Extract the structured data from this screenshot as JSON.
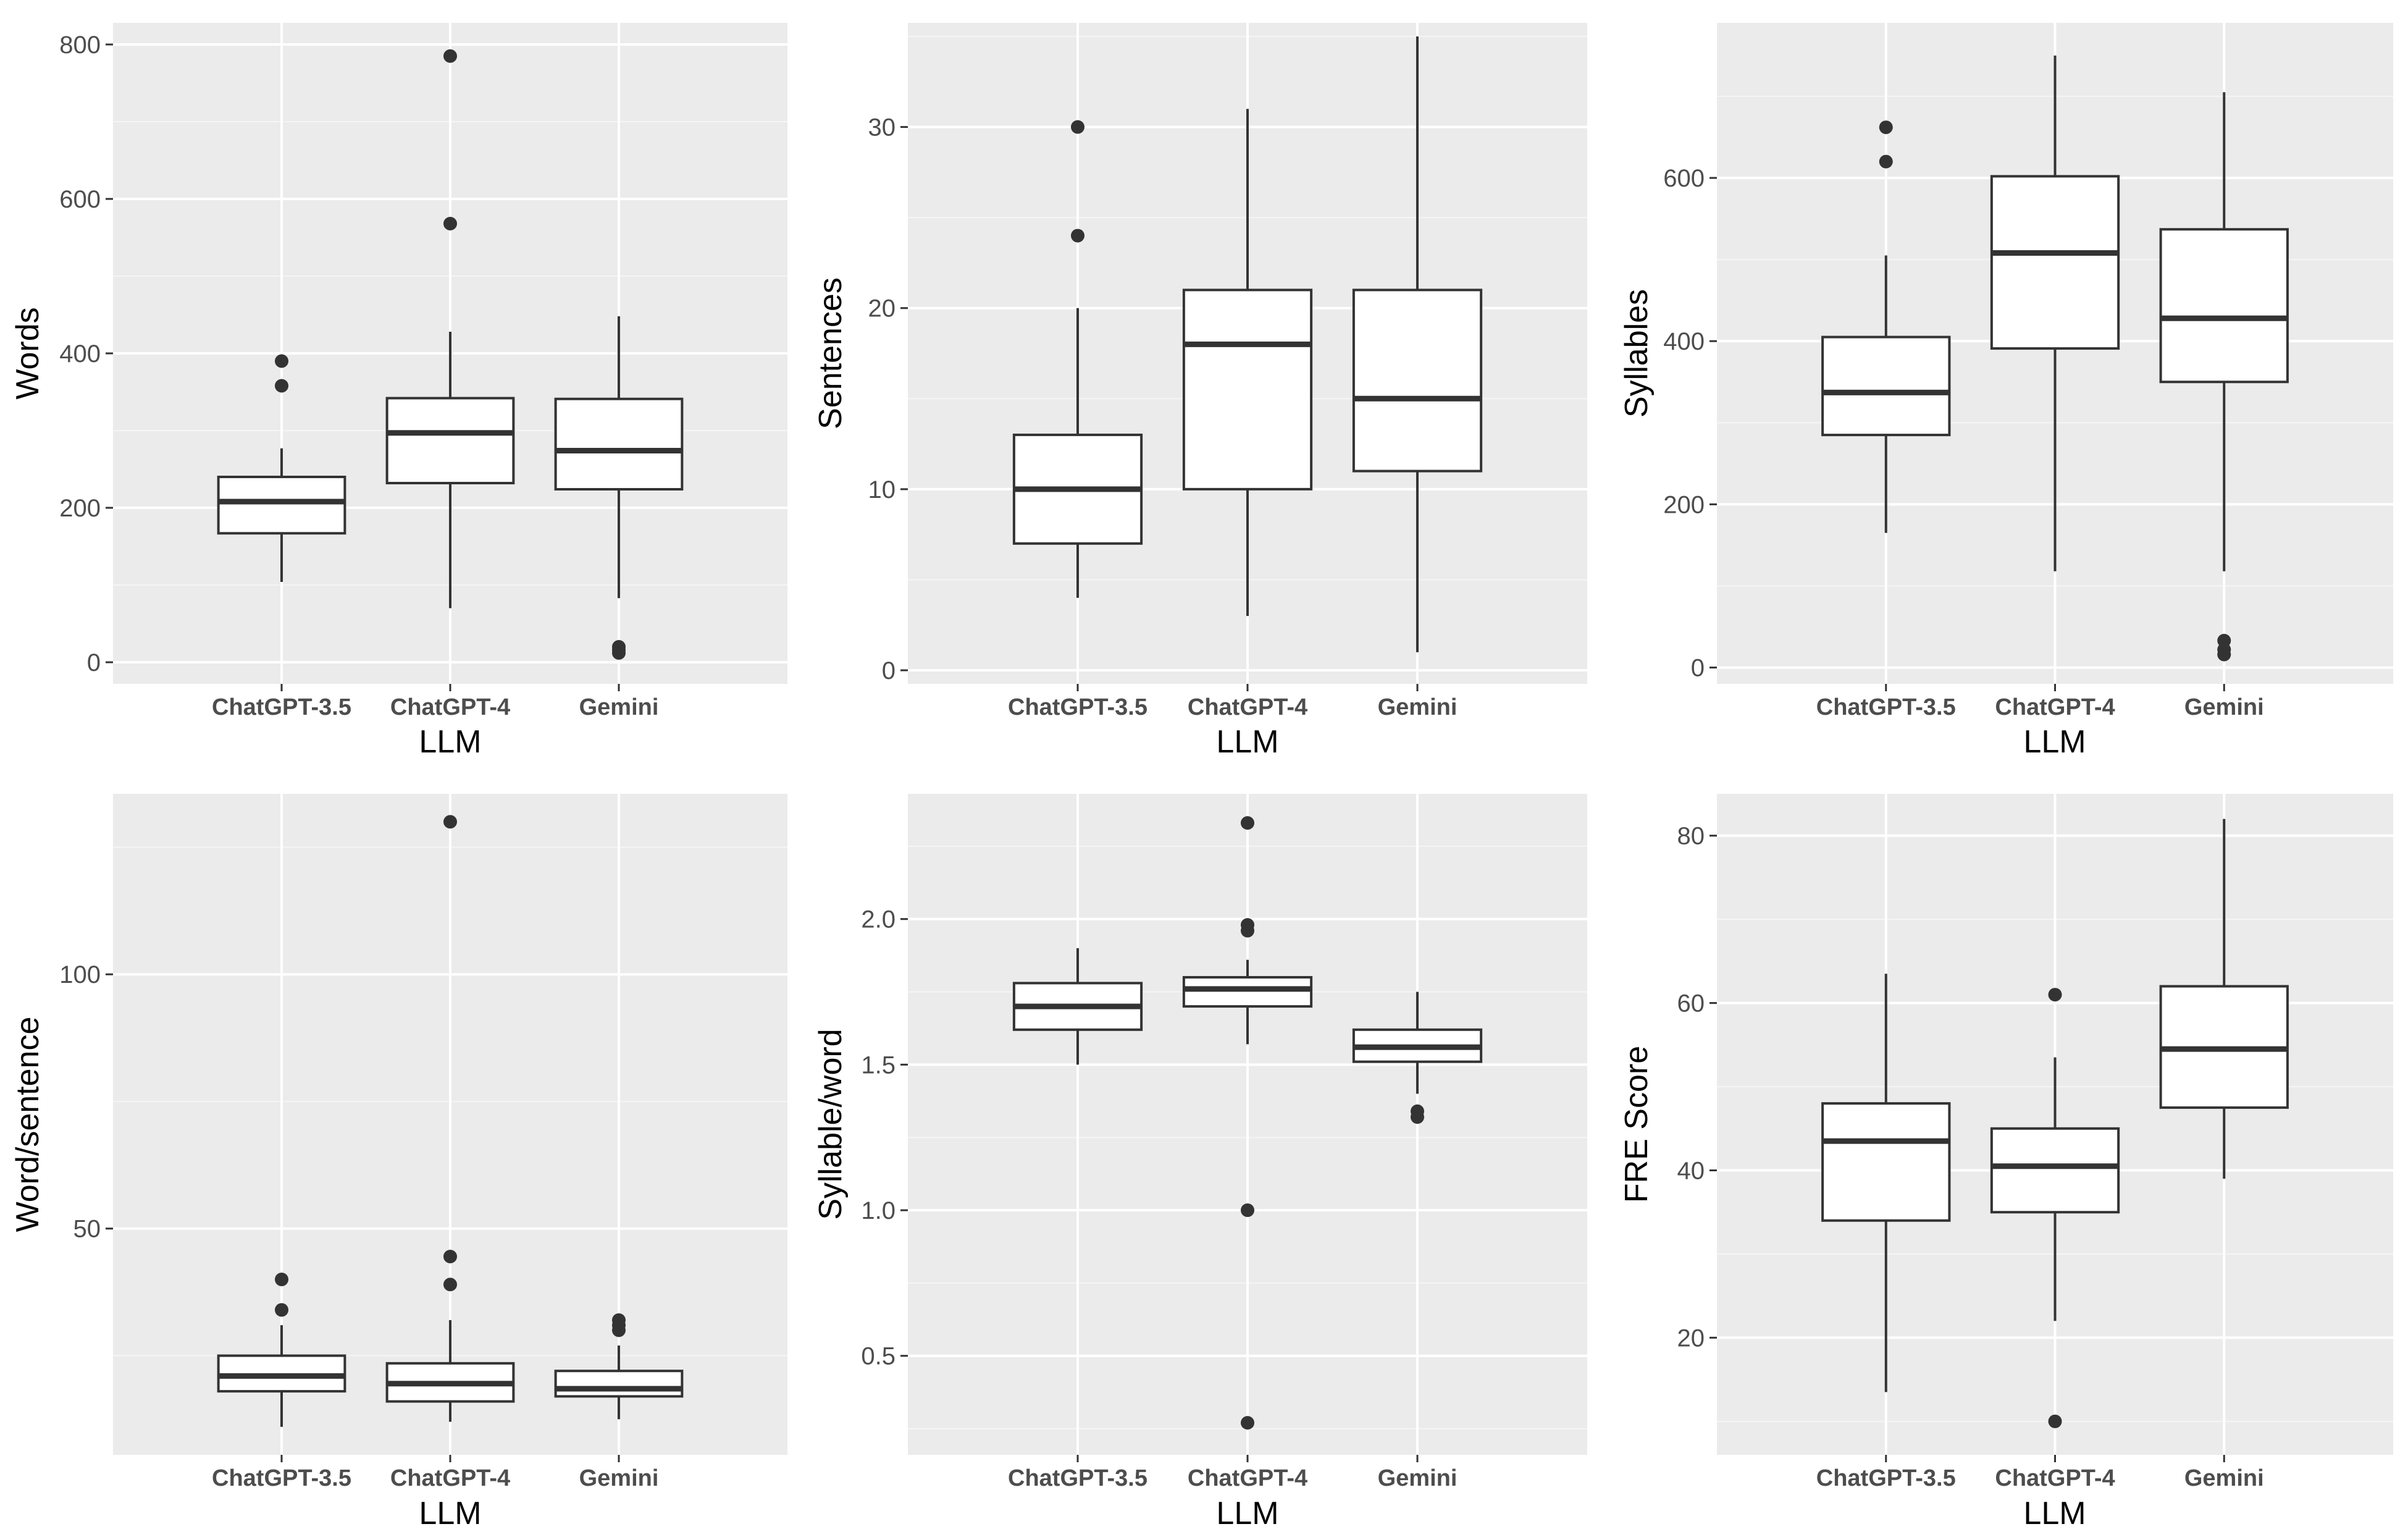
{
  "colors": {
    "panel_background": "#ebebeb",
    "major_grid": "#ffffff",
    "minor_grid": "#f5f5f5",
    "box_fill": "#ffffff",
    "box_stroke": "#333333",
    "outlier": "#333333",
    "tick_label": "#4d4d4d",
    "axis_title": "#000000"
  },
  "chart_data": [
    {
      "type": "boxplot",
      "title": "",
      "xlabel": "LLM",
      "ylabel": "Words",
      "categories": [
        "ChatGPT-3.5",
        "ChatGPT-4",
        "Gemini"
      ],
      "ylim": [
        -28,
        828
      ],
      "yticks": [
        0,
        200,
        400,
        600,
        800
      ],
      "ytick_labels": [
        "0",
        "200",
        "400",
        "600",
        "800"
      ],
      "boxes": [
        {
          "category": "ChatGPT-3.5",
          "whisker_low": 104,
          "q1": 167,
          "median": 208,
          "q3": 240,
          "whisker_high": 277,
          "outliers": [
            358,
            390
          ]
        },
        {
          "category": "ChatGPT-4",
          "whisker_low": 70,
          "q1": 232,
          "median": 297,
          "q3": 342,
          "whisker_high": 428,
          "outliers": [
            568,
            785
          ]
        },
        {
          "category": "Gemini",
          "whisker_low": 83,
          "q1": 224,
          "median": 274,
          "q3": 341,
          "whisker_high": 448,
          "outliers": [
            12,
            16,
            20
          ]
        }
      ]
    },
    {
      "type": "boxplot",
      "title": "",
      "xlabel": "LLM",
      "ylabel": "Sentences",
      "categories": [
        "ChatGPT-3.5",
        "ChatGPT-4",
        "Gemini"
      ],
      "ylim": [
        -0.75,
        35.75
      ],
      "yticks": [
        0,
        10,
        20,
        30
      ],
      "ytick_labels": [
        "0",
        "10",
        "20",
        "30"
      ],
      "boxes": [
        {
          "category": "ChatGPT-3.5",
          "whisker_low": 4,
          "q1": 7,
          "median": 10,
          "q3": 13,
          "whisker_high": 20,
          "outliers": [
            24,
            30
          ]
        },
        {
          "category": "ChatGPT-4",
          "whisker_low": 3,
          "q1": 10,
          "median": 18,
          "q3": 21,
          "whisker_high": 31,
          "outliers": []
        },
        {
          "category": "Gemini",
          "whisker_low": 1,
          "q1": 11,
          "median": 15,
          "q3": 21,
          "whisker_high": 35,
          "outliers": []
        }
      ]
    },
    {
      "type": "boxplot",
      "title": "",
      "xlabel": "LLM",
      "ylabel": "Syllables",
      "categories": [
        "ChatGPT-3.5",
        "ChatGPT-4",
        "Gemini"
      ],
      "ylim": [
        -20,
        790
      ],
      "yticks": [
        0,
        200,
        400,
        600
      ],
      "ytick_labels": [
        "0",
        "200",
        "400",
        "600"
      ],
      "boxes": [
        {
          "category": "ChatGPT-3.5",
          "whisker_low": 165,
          "q1": 285,
          "median": 337,
          "q3": 405,
          "whisker_high": 505,
          "outliers": [
            620,
            662
          ]
        },
        {
          "category": "ChatGPT-4",
          "whisker_low": 118,
          "q1": 391,
          "median": 508,
          "q3": 602,
          "whisker_high": 750,
          "outliers": []
        },
        {
          "category": "Gemini",
          "whisker_low": 118,
          "q1": 350,
          "median": 428,
          "q3": 537,
          "whisker_high": 705,
          "outliers": [
            16,
            22,
            33
          ]
        }
      ]
    },
    {
      "type": "boxplot",
      "title": "",
      "xlabel": "LLM",
      "ylabel": "Word/sentence",
      "categories": [
        "ChatGPT-3.5",
        "ChatGPT-4",
        "Gemini"
      ],
      "ylim": [
        5.5,
        135.5
      ],
      "yticks": [
        50,
        100
      ],
      "ytick_labels": [
        "50",
        "100"
      ],
      "boxes": [
        {
          "category": "ChatGPT-3.5",
          "whisker_low": 11,
          "q1": 18,
          "median": 21,
          "q3": 25,
          "whisker_high": 31,
          "outliers": [
            34,
            40
          ]
        },
        {
          "category": "ChatGPT-4",
          "whisker_low": 12,
          "q1": 16,
          "median": 19.5,
          "q3": 23.5,
          "whisker_high": 32,
          "outliers": [
            39,
            44.5,
            130
          ]
        },
        {
          "category": "Gemini",
          "whisker_low": 12.5,
          "q1": 17,
          "median": 18.5,
          "q3": 22,
          "whisker_high": 27,
          "outliers": [
            30,
            31,
            32
          ]
        }
      ]
    },
    {
      "type": "boxplot",
      "title": "",
      "xlabel": "LLM",
      "ylabel": "Syllable/word",
      "categories": [
        "ChatGPT-3.5",
        "ChatGPT-4",
        "Gemini"
      ],
      "ylim": [
        0.16,
        2.43
      ],
      "yticks": [
        0.5,
        1.0,
        1.5,
        2.0
      ],
      "ytick_labels": [
        "0.5",
        "1.0",
        "1.5",
        "2.0"
      ],
      "boxes": [
        {
          "category": "ChatGPT-3.5",
          "whisker_low": 1.5,
          "q1": 1.62,
          "median": 1.7,
          "q3": 1.78,
          "whisker_high": 1.9,
          "outliers": []
        },
        {
          "category": "ChatGPT-4",
          "whisker_low": 1.57,
          "q1": 1.7,
          "median": 1.76,
          "q3": 1.8,
          "whisker_high": 1.86,
          "outliers": [
            0.27,
            1.0,
            1.96,
            1.98,
            2.33
          ]
        },
        {
          "category": "Gemini",
          "whisker_low": 1.4,
          "q1": 1.51,
          "median": 1.56,
          "q3": 1.62,
          "whisker_high": 1.75,
          "outliers": [
            1.32,
            1.34
          ]
        }
      ]
    },
    {
      "type": "boxplot",
      "title": "",
      "xlabel": "LLM",
      "ylabel": "FRE Score",
      "categories": [
        "ChatGPT-3.5",
        "ChatGPT-4",
        "Gemini"
      ],
      "ylim": [
        6,
        85
      ],
      "yticks": [
        20,
        40,
        60,
        80
      ],
      "ytick_labels": [
        "20",
        "40",
        "60",
        "80"
      ],
      "boxes": [
        {
          "category": "ChatGPT-3.5",
          "whisker_low": 13.5,
          "q1": 34,
          "median": 43.5,
          "q3": 48,
          "whisker_high": 63.5,
          "outliers": []
        },
        {
          "category": "ChatGPT-4",
          "whisker_low": 22,
          "q1": 35,
          "median": 40.5,
          "q3": 45,
          "whisker_high": 53.5,
          "outliers": [
            10,
            61
          ]
        },
        {
          "category": "Gemini",
          "whisker_low": 39,
          "q1": 47.5,
          "median": 54.5,
          "q3": 62,
          "whisker_high": 82,
          "outliers": []
        }
      ]
    }
  ]
}
